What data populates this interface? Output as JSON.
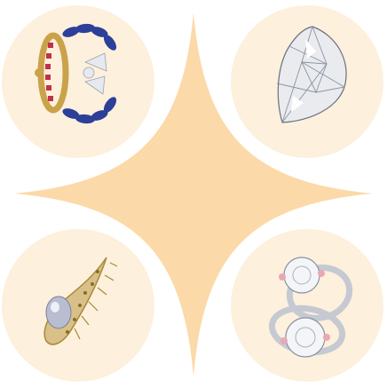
{
  "colors": {
    "background": "#ffffff",
    "star": "#fcd9a8",
    "circle": "#fdf0dc",
    "gold": "#c9a24a",
    "sapphire": "#2c3f99",
    "ruby": "#c2304a",
    "diamond": "#e6e9ee",
    "rose": "#e9a8b4"
  },
  "items": [
    {
      "name": "sapphire-ruby-bow-bracelet",
      "icon": "bracelet-icon"
    },
    {
      "name": "pear-shaped-diamond",
      "icon": "diamond-icon"
    },
    {
      "name": "pearl-paisley-brooch",
      "icon": "brooch-icon"
    },
    {
      "name": "diamond-engagement-rings",
      "icon": "ring-icon"
    }
  ]
}
